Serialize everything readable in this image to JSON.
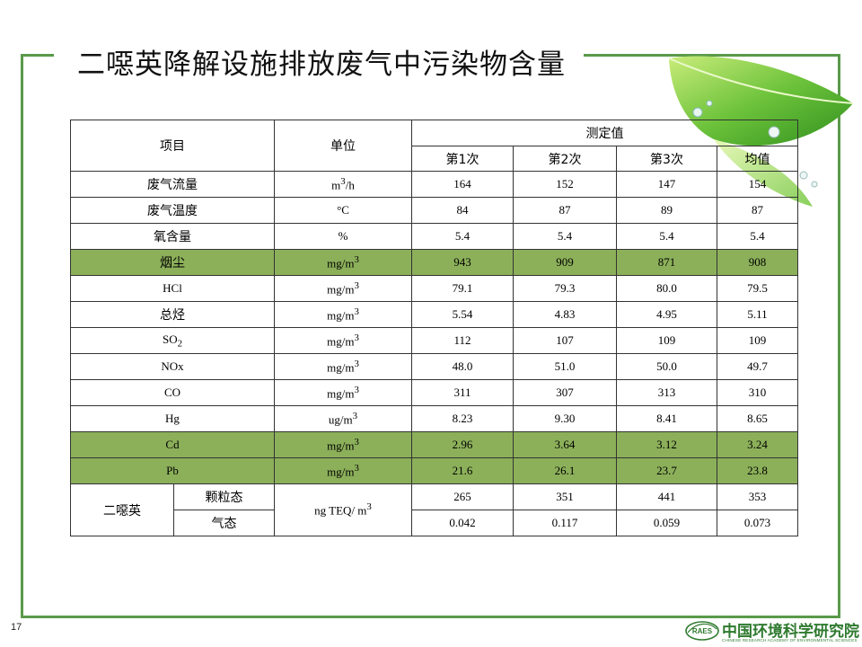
{
  "title": "二噁英降解设施排放废气中污染物含量",
  "page_number": "17",
  "table": {
    "header": {
      "item": "项目",
      "unit": "单位",
      "measured": "测定值",
      "runs": [
        "第1次",
        "第2次",
        "第3次",
        "均值"
      ]
    },
    "rows": [
      {
        "name": "废气流量",
        "unit_base": "m",
        "unit_sup": "3",
        "unit_tail": "/h",
        "values": [
          "164",
          "152",
          "147",
          "154"
        ],
        "highlight": false
      },
      {
        "name": "废气温度",
        "unit_base": "°C",
        "unit_sup": "",
        "unit_tail": "",
        "values": [
          "84",
          "87",
          "89",
          "87"
        ],
        "highlight": false
      },
      {
        "name": "氧含量",
        "unit_base": "%",
        "unit_sup": "",
        "unit_tail": "",
        "values": [
          "5.4",
          "5.4",
          "5.4",
          "5.4"
        ],
        "highlight": false
      },
      {
        "name": "烟尘",
        "unit_base": "mg/m",
        "unit_sup": "3",
        "unit_tail": "",
        "values": [
          "943",
          "909",
          "871",
          "908"
        ],
        "highlight": true
      },
      {
        "name": "HCl",
        "unit_base": "mg/m",
        "unit_sup": "3",
        "unit_tail": "",
        "values": [
          "79.1",
          "79.3",
          "80.0",
          "79.5"
        ],
        "highlight": false
      },
      {
        "name": "总烃",
        "unit_base": "mg/m",
        "unit_sup": "3",
        "unit_tail": "",
        "values": [
          "5.54",
          "4.83",
          "4.95",
          "5.11"
        ],
        "highlight": false
      },
      {
        "name": "SO",
        "name_sub": "2",
        "unit_base": "mg/m",
        "unit_sup": "3",
        "unit_tail": "",
        "values": [
          "112",
          "107",
          "109",
          "109"
        ],
        "highlight": false
      },
      {
        "name": "NOx",
        "unit_base": "mg/m",
        "unit_sup": "3",
        "unit_tail": "",
        "values": [
          "48.0",
          "51.0",
          "50.0",
          "49.7"
        ],
        "highlight": false
      },
      {
        "name": "CO",
        "unit_base": "mg/m",
        "unit_sup": "3",
        "unit_tail": "",
        "values": [
          "311",
          "307",
          "313",
          "310"
        ],
        "highlight": false
      },
      {
        "name": "Hg",
        "unit_base": "ug/m",
        "unit_sup": "3",
        "unit_tail": "",
        "values": [
          "8.23",
          "9.30",
          "8.41",
          "8.65"
        ],
        "highlight": false
      },
      {
        "name": "Cd",
        "unit_base": "mg/m",
        "unit_sup": "3",
        "unit_tail": "",
        "values": [
          "2.96",
          "3.64",
          "3.12",
          "3.24"
        ],
        "highlight": true
      },
      {
        "name": "Pb",
        "unit_base": "mg/m",
        "unit_sup": "3",
        "unit_tail": "",
        "values": [
          "21.6",
          "26.1",
          "23.7",
          "23.8"
        ],
        "highlight": true
      }
    ],
    "dioxin": {
      "name": "二噁英",
      "unit_base": "ng TEQ/ m",
      "unit_sup": "3",
      "sub_rows": [
        {
          "name": "颗粒态",
          "values": [
            "265",
            "351",
            "441",
            "353"
          ]
        },
        {
          "name": "气态",
          "values": [
            "0.042",
            "0.117",
            "0.059",
            "0.073"
          ]
        }
      ]
    }
  },
  "logo": {
    "badge": "RAES",
    "name": "中国环境科学研究院",
    "subtitle": "CHINESE RESEARCH ACADEMY OF ENVIRONMENTAL SCIENCES"
  },
  "colors": {
    "frame": "#5a9a4a",
    "highlight_row": "#8cb05a",
    "logo": "#2f7a2f"
  }
}
